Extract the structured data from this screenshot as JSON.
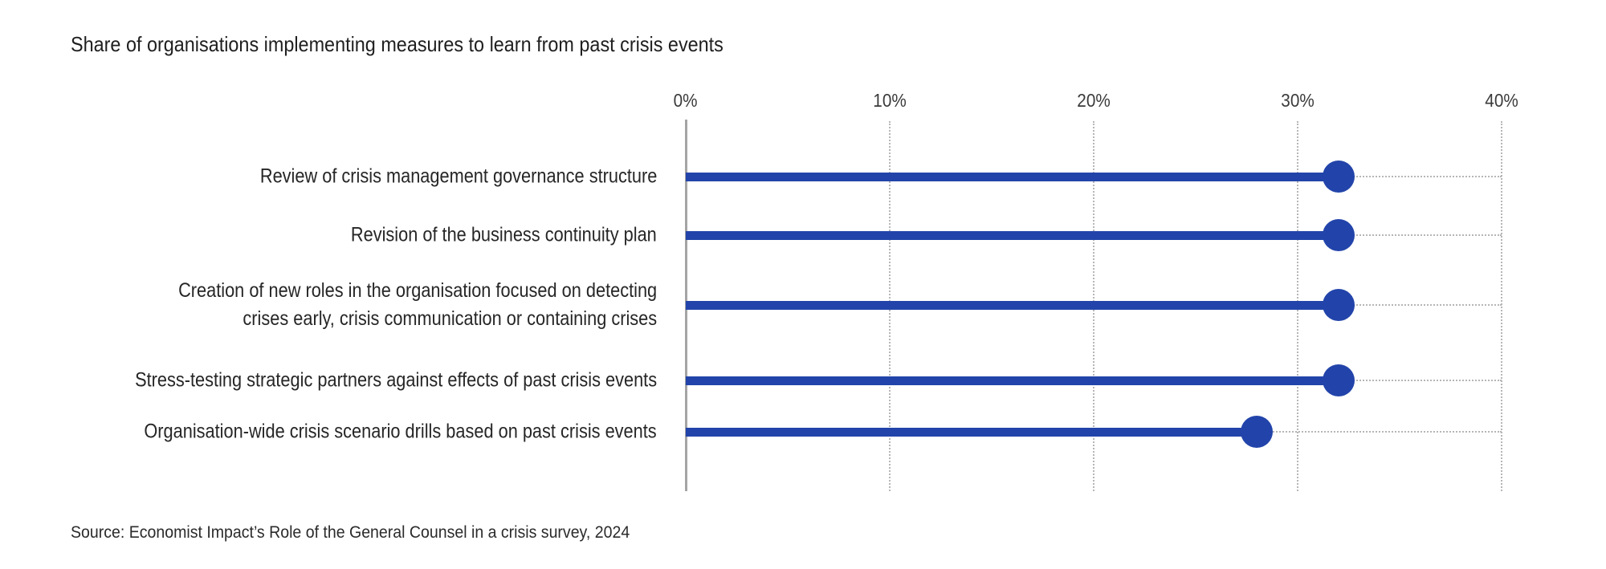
{
  "page": {
    "background": "#ffffff"
  },
  "colors": {
    "bar_blue": "#2244AA",
    "axis_line_gray": "#A4A4A4",
    "gridline_gray": "#B6B6B6",
    "title_text": "#1F1F1F",
    "label_text": "#262626",
    "tick_text": "#3A3A3A",
    "source_text": "#2B2B2B"
  },
  "source": {
    "text": "Source: Economist Impact’s Role of the General Counsel in a crisis survey, 2024"
  },
  "chart_data": {
    "type": "bar",
    "subtype": "horizontal-lollipop",
    "title": "Share of organisations implementing measures to learn from past crisis events",
    "xlabel": "",
    "ylabel": "",
    "unit": "percent",
    "xlim": [
      0,
      40
    ],
    "x_tick_values": [
      0,
      10,
      20,
      30,
      40
    ],
    "x_tick_labels": [
      "0%",
      "10%",
      "20%",
      "30%",
      "40%"
    ],
    "grid": "vertical-dotted-gridlines-and-dotted-row-leader-lines",
    "legend": "none",
    "categories": [
      "Review of crisis management governance structure",
      "Revision of the business continuity plan",
      "Creation of new roles in the organisation focused on detecting crises early, crisis communication or containing crises",
      "Stress-testing strategic partners against effects of past crisis events",
      "Organisation-wide crisis scenario drills based on past crisis events"
    ],
    "category_label_lines": [
      [
        "Review of crisis management governance structure"
      ],
      [
        "Revision of the business continuity plan"
      ],
      [
        "Creation of new roles in the organisation focused on detecting",
        "crises early, crisis communication or containing crises"
      ],
      [
        "Stress-testing strategic partners against effects of past crisis events"
      ],
      [
        "Organisation-wide crisis scenario drills based on past crisis events"
      ]
    ],
    "values": [
      32,
      32,
      32,
      32,
      28
    ]
  }
}
